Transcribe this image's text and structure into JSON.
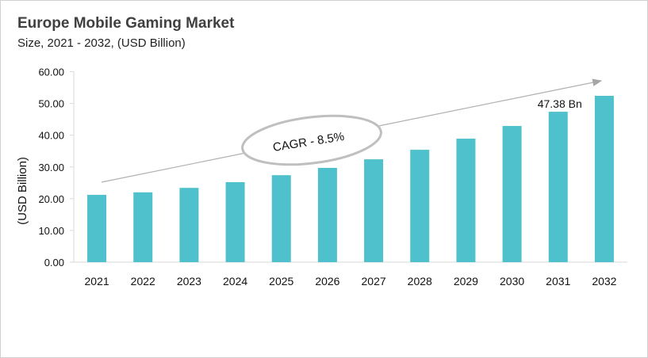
{
  "chart_data": {
    "type": "bar",
    "title": "Europe Mobile Gaming Market",
    "subtitle": "Size, 2021 - 2032, (USD Billion)",
    "xlabel": "",
    "ylabel": "(USD Billion)",
    "ylim": [
      0,
      60
    ],
    "yticks": [
      "0.00",
      "10.00",
      "20.00",
      "30.00",
      "40.00",
      "50.00",
      "60.00"
    ],
    "grid": false,
    "categories": [
      "2021",
      "2022",
      "2023",
      "2024",
      "2025",
      "2026",
      "2027",
      "2028",
      "2029",
      "2030",
      "2031",
      "2032"
    ],
    "values": [
      21.2,
      22.0,
      23.4,
      25.2,
      27.4,
      29.7,
      32.4,
      35.4,
      38.9,
      42.9,
      47.38,
      52.4
    ],
    "bar_color": "#4fc1cc",
    "data_label": {
      "category": "2031",
      "text": "47.38 Bn"
    },
    "annotation": "CAGR - 8.5%"
  }
}
